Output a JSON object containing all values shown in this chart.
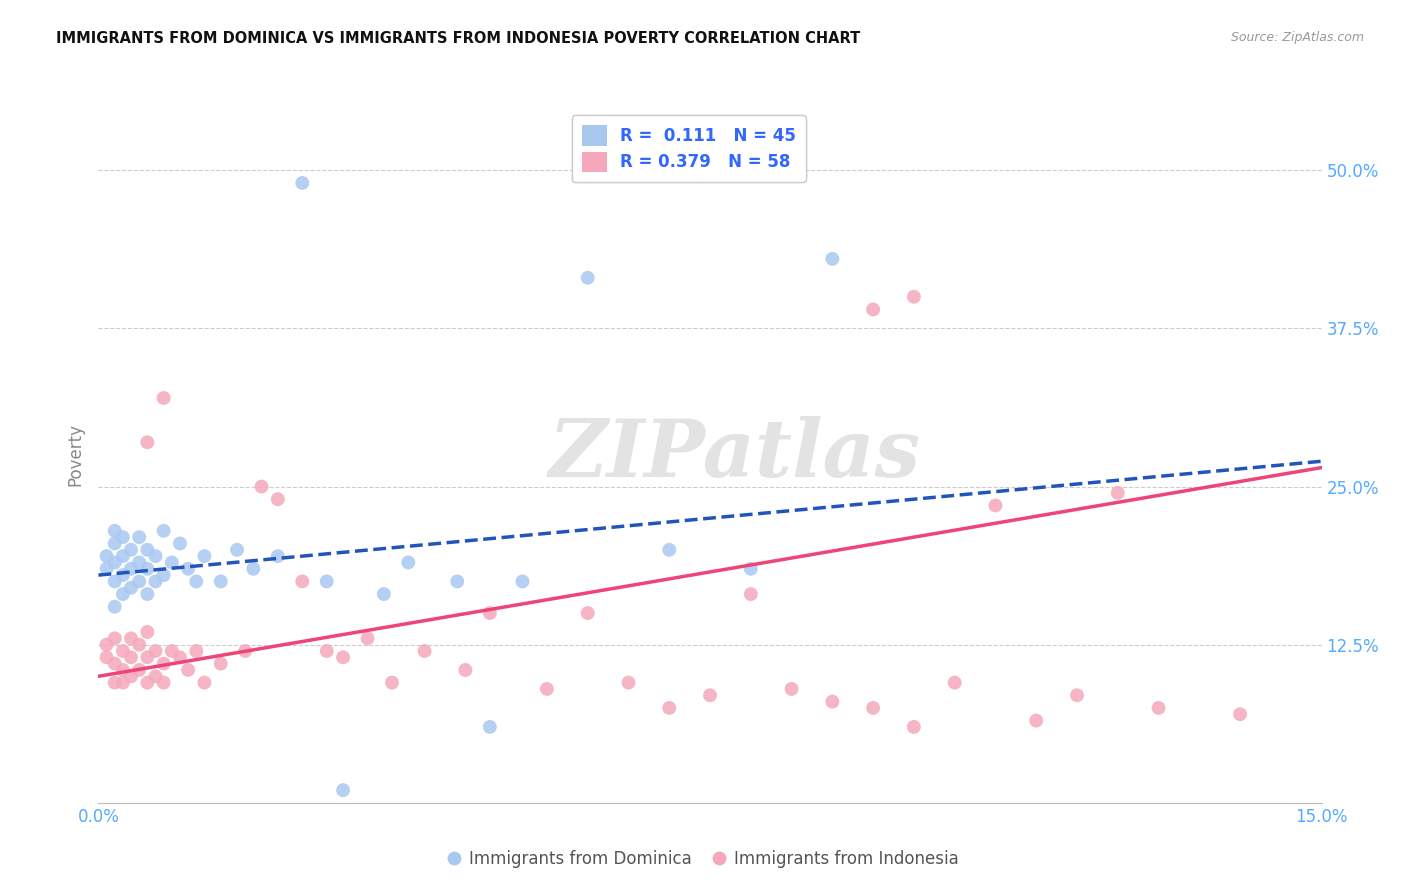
{
  "title": "IMMIGRANTS FROM DOMINICA VS IMMIGRANTS FROM INDONESIA POVERTY CORRELATION CHART",
  "source": "Source: ZipAtlas.com",
  "ylabel": "Poverty",
  "ytick_labels": [
    "50.0%",
    "37.5%",
    "25.0%",
    "12.5%"
  ],
  "ytick_values": [
    0.5,
    0.375,
    0.25,
    0.125
  ],
  "xlim": [
    0.0,
    0.15
  ],
  "ylim": [
    0.0,
    0.55
  ],
  "series1_label": "Immigrants from Dominica",
  "series2_label": "Immigrants from Indonesia",
  "blue_scatter": "#A8C8F0",
  "pink_scatter": "#F5A8BB",
  "blue_line": "#2255BB",
  "pink_line": "#EE4477",
  "legend_text_color": "#3366FF",
  "axis_tick_color": "#55AAFF",
  "background_color": "#ffffff",
  "grid_color": "#CCCCCC",
  "title_color": "#111111",
  "label_color": "#888888",
  "watermark": "ZIPatlas",
  "dom_x": [
    0.001,
    0.001,
    0.002,
    0.002,
    0.002,
    0.002,
    0.002,
    0.003,
    0.003,
    0.003,
    0.003,
    0.004,
    0.004,
    0.004,
    0.005,
    0.005,
    0.005,
    0.006,
    0.006,
    0.006,
    0.007,
    0.007,
    0.008,
    0.008,
    0.009,
    0.01,
    0.011,
    0.012,
    0.013,
    0.015,
    0.017,
    0.019,
    0.022,
    0.028,
    0.035,
    0.038,
    0.044,
    0.048,
    0.052,
    0.07,
    0.08,
    0.09,
    0.03,
    0.025,
    0.06
  ],
  "dom_y": [
    0.185,
    0.195,
    0.175,
    0.19,
    0.205,
    0.215,
    0.155,
    0.18,
    0.195,
    0.21,
    0.165,
    0.185,
    0.2,
    0.17,
    0.19,
    0.175,
    0.21,
    0.185,
    0.2,
    0.165,
    0.195,
    0.175,
    0.215,
    0.18,
    0.19,
    0.205,
    0.185,
    0.175,
    0.195,
    0.175,
    0.2,
    0.185,
    0.195,
    0.175,
    0.165,
    0.19,
    0.175,
    0.06,
    0.175,
    0.2,
    0.185,
    0.43,
    0.01,
    0.49,
    0.415
  ],
  "ind_x": [
    0.001,
    0.001,
    0.002,
    0.002,
    0.002,
    0.003,
    0.003,
    0.003,
    0.004,
    0.004,
    0.004,
    0.005,
    0.005,
    0.006,
    0.006,
    0.006,
    0.007,
    0.007,
    0.008,
    0.008,
    0.009,
    0.01,
    0.011,
    0.012,
    0.013,
    0.015,
    0.018,
    0.02,
    0.022,
    0.025,
    0.028,
    0.03,
    0.033,
    0.036,
    0.04,
    0.045,
    0.048,
    0.055,
    0.06,
    0.065,
    0.07,
    0.075,
    0.08,
    0.085,
    0.09,
    0.095,
    0.1,
    0.105,
    0.11,
    0.12,
    0.125,
    0.13,
    0.14,
    0.008,
    0.006,
    0.095,
    0.1,
    0.115
  ],
  "ind_y": [
    0.115,
    0.125,
    0.095,
    0.11,
    0.13,
    0.105,
    0.12,
    0.095,
    0.115,
    0.1,
    0.13,
    0.105,
    0.125,
    0.095,
    0.115,
    0.135,
    0.1,
    0.12,
    0.11,
    0.095,
    0.12,
    0.115,
    0.105,
    0.12,
    0.095,
    0.11,
    0.12,
    0.25,
    0.24,
    0.175,
    0.12,
    0.115,
    0.13,
    0.095,
    0.12,
    0.105,
    0.15,
    0.09,
    0.15,
    0.095,
    0.075,
    0.085,
    0.165,
    0.09,
    0.08,
    0.075,
    0.06,
    0.095,
    0.235,
    0.085,
    0.245,
    0.075,
    0.07,
    0.32,
    0.285,
    0.39,
    0.4,
    0.065
  ],
  "blue_line_x": [
    0.0,
    0.15
  ],
  "blue_line_y": [
    0.18,
    0.27
  ],
  "pink_line_x": [
    0.0,
    0.15
  ],
  "pink_line_y": [
    0.1,
    0.265
  ]
}
